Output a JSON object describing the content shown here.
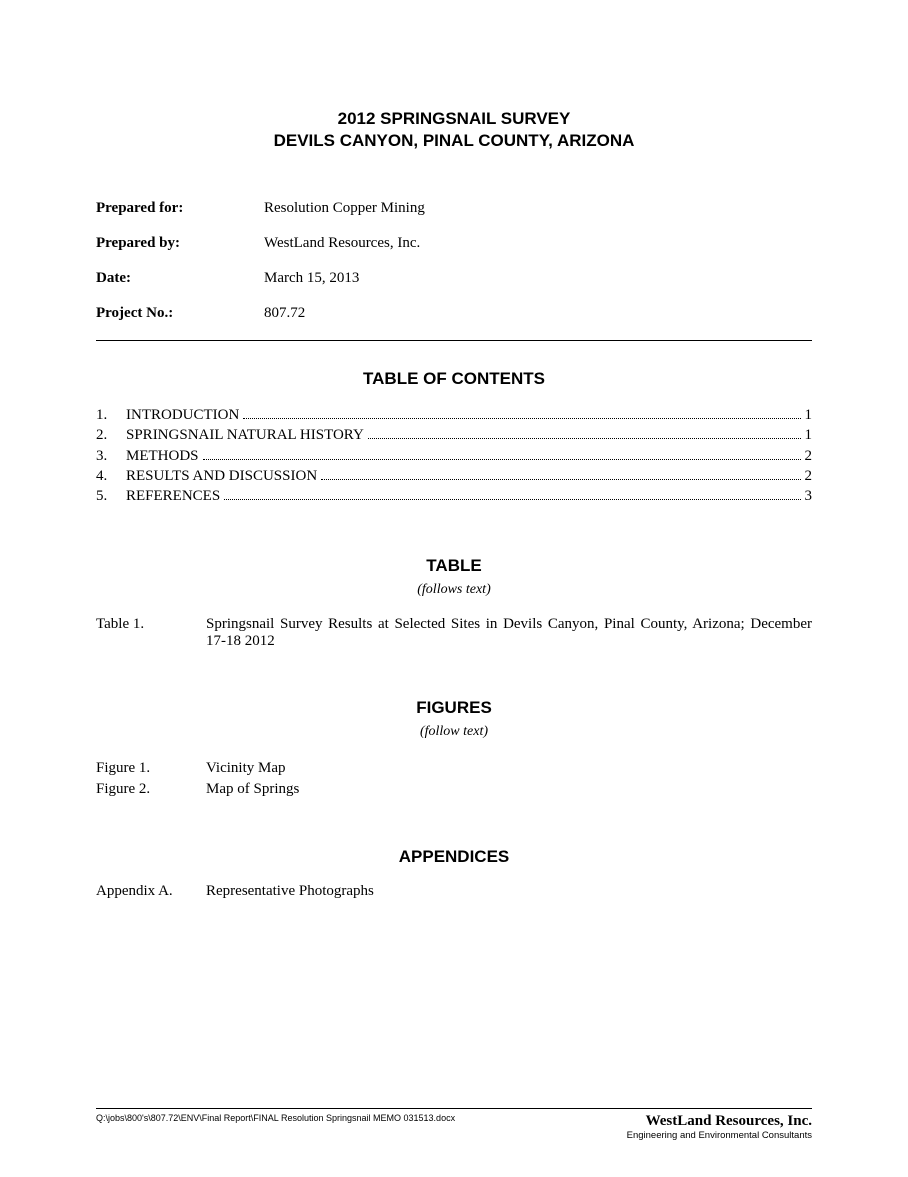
{
  "title": {
    "line1": "2012 SPRINGSNAIL SURVEY",
    "line2": "DEVILS CANYON, PINAL COUNTY, ARIZONA"
  },
  "meta": [
    {
      "label": "Prepared for:",
      "value": "Resolution Copper Mining"
    },
    {
      "label": "Prepared by:",
      "value": "WestLand Resources, Inc."
    },
    {
      "label": "Date:",
      "value": "March 15, 2013"
    },
    {
      "label": "Project No.:",
      "value": "807.72"
    }
  ],
  "headings": {
    "toc": "TABLE OF CONTENTS",
    "table": "TABLE",
    "table_sub": "(follows text)",
    "figures": "FIGURES",
    "figures_sub": "(follow text)",
    "appendices": "APPENDICES"
  },
  "toc": [
    {
      "num": "1.",
      "title": "INTRODUCTION",
      "page": "1"
    },
    {
      "num": "2.",
      "title": "SPRINGSNAIL NATURAL HISTORY",
      "page": "1"
    },
    {
      "num": "3.",
      "title": "METHODS",
      "page": "2"
    },
    {
      "num": "4.",
      "title": "RESULTS AND DISCUSSION",
      "page": "2"
    },
    {
      "num": "5.",
      "title": "REFERENCES",
      "page": "3"
    }
  ],
  "tables": [
    {
      "label": "Table 1.",
      "desc": "Springsnail Survey Results at Selected Sites in Devils Canyon, Pinal County, Arizona; December 17-18 2012"
    }
  ],
  "figures": [
    {
      "label": "Figure 1.",
      "desc": "Vicinity Map"
    },
    {
      "label": "Figure 2.",
      "desc": "Map of Springs"
    }
  ],
  "appendices": [
    {
      "label": "Appendix A.",
      "desc": "Representative Photographs"
    }
  ],
  "footer": {
    "path": "Q:\\jobs\\800's\\807.72\\ENV\\Final Report\\FINAL Resolution Springsnail MEMO 031513.docx",
    "company_name": "WestLand Resources, Inc.",
    "company_sub": "Engineering and Environmental Consultants"
  }
}
